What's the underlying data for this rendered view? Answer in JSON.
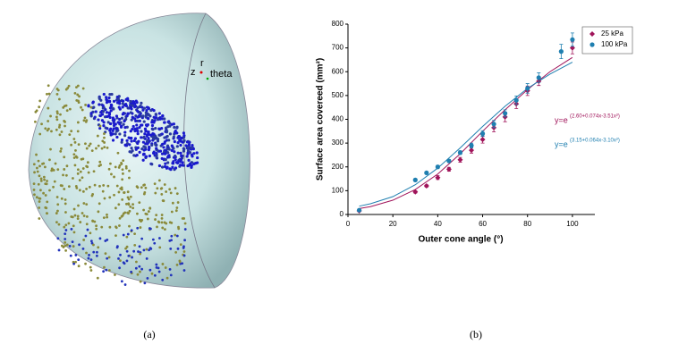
{
  "panel_a": {
    "axis_labels": [
      "z",
      "r",
      "theta"
    ],
    "caption": "(a)"
  },
  "panel_b_caption": "(b)",
  "chart_data": {
    "type": "scatter",
    "xlabel": "Outer cone angle (°)",
    "ylabel": "Surface area covereed (mm²)",
    "xlim": [
      0,
      110
    ],
    "xticks": [
      0,
      20,
      40,
      60,
      80,
      100
    ],
    "ylim": [
      0,
      800
    ],
    "yticks": [
      0,
      100,
      200,
      300,
      400,
      500,
      600,
      700,
      800
    ],
    "legend": "top-right",
    "series": [
      {
        "name": "25 kPa",
        "color": "#a0145a",
        "marker": "diamond",
        "x": [
          5,
          30,
          35,
          40,
          45,
          50,
          55,
          60,
          65,
          70,
          75,
          80,
          85,
          100
        ],
        "values": [
          15,
          95,
          120,
          155,
          190,
          230,
          270,
          315,
          365,
          410,
          465,
          520,
          560,
          700
        ],
        "errors": [
          3,
          5,
          5,
          8,
          8,
          10,
          12,
          15,
          18,
          20,
          20,
          20,
          18,
          25
        ]
      },
      {
        "name": "100 kPa",
        "color": "#1f7fb0",
        "marker": "circle",
        "x": [
          5,
          30,
          35,
          40,
          45,
          50,
          55,
          60,
          65,
          70,
          75,
          80,
          85,
          95,
          100
        ],
        "values": [
          18,
          145,
          175,
          200,
          225,
          260,
          290,
          340,
          380,
          425,
          480,
          530,
          575,
          685,
          735
        ],
        "errors": [
          3,
          5,
          5,
          6,
          6,
          8,
          10,
          12,
          15,
          15,
          18,
          20,
          20,
          30,
          28
        ]
      }
    ],
    "fits": [
      {
        "color": "#a0145a",
        "x": [
          5,
          10,
          20,
          30,
          40,
          50,
          60,
          70,
          80,
          90,
          100
        ],
        "values": [
          25,
          33,
          60,
          105,
          170,
          255,
          350,
          440,
          525,
          600,
          660
        ]
      },
      {
        "color": "#1f7fb0",
        "x": [
          5,
          10,
          20,
          30,
          40,
          50,
          60,
          70,
          80,
          90,
          100
        ],
        "values": [
          35,
          45,
          75,
          125,
          195,
          280,
          370,
          455,
          530,
          590,
          640
        ]
      }
    ],
    "annotations": [
      {
        "text": "y=e",
        "exponent": "(2.60+0.074x-3.51x²)",
        "color": "#a0145a"
      },
      {
        "text": "y=e",
        "exponent": "(3.15+0.064x-3.10x²)",
        "color": "#1f7fb0"
      }
    ]
  }
}
